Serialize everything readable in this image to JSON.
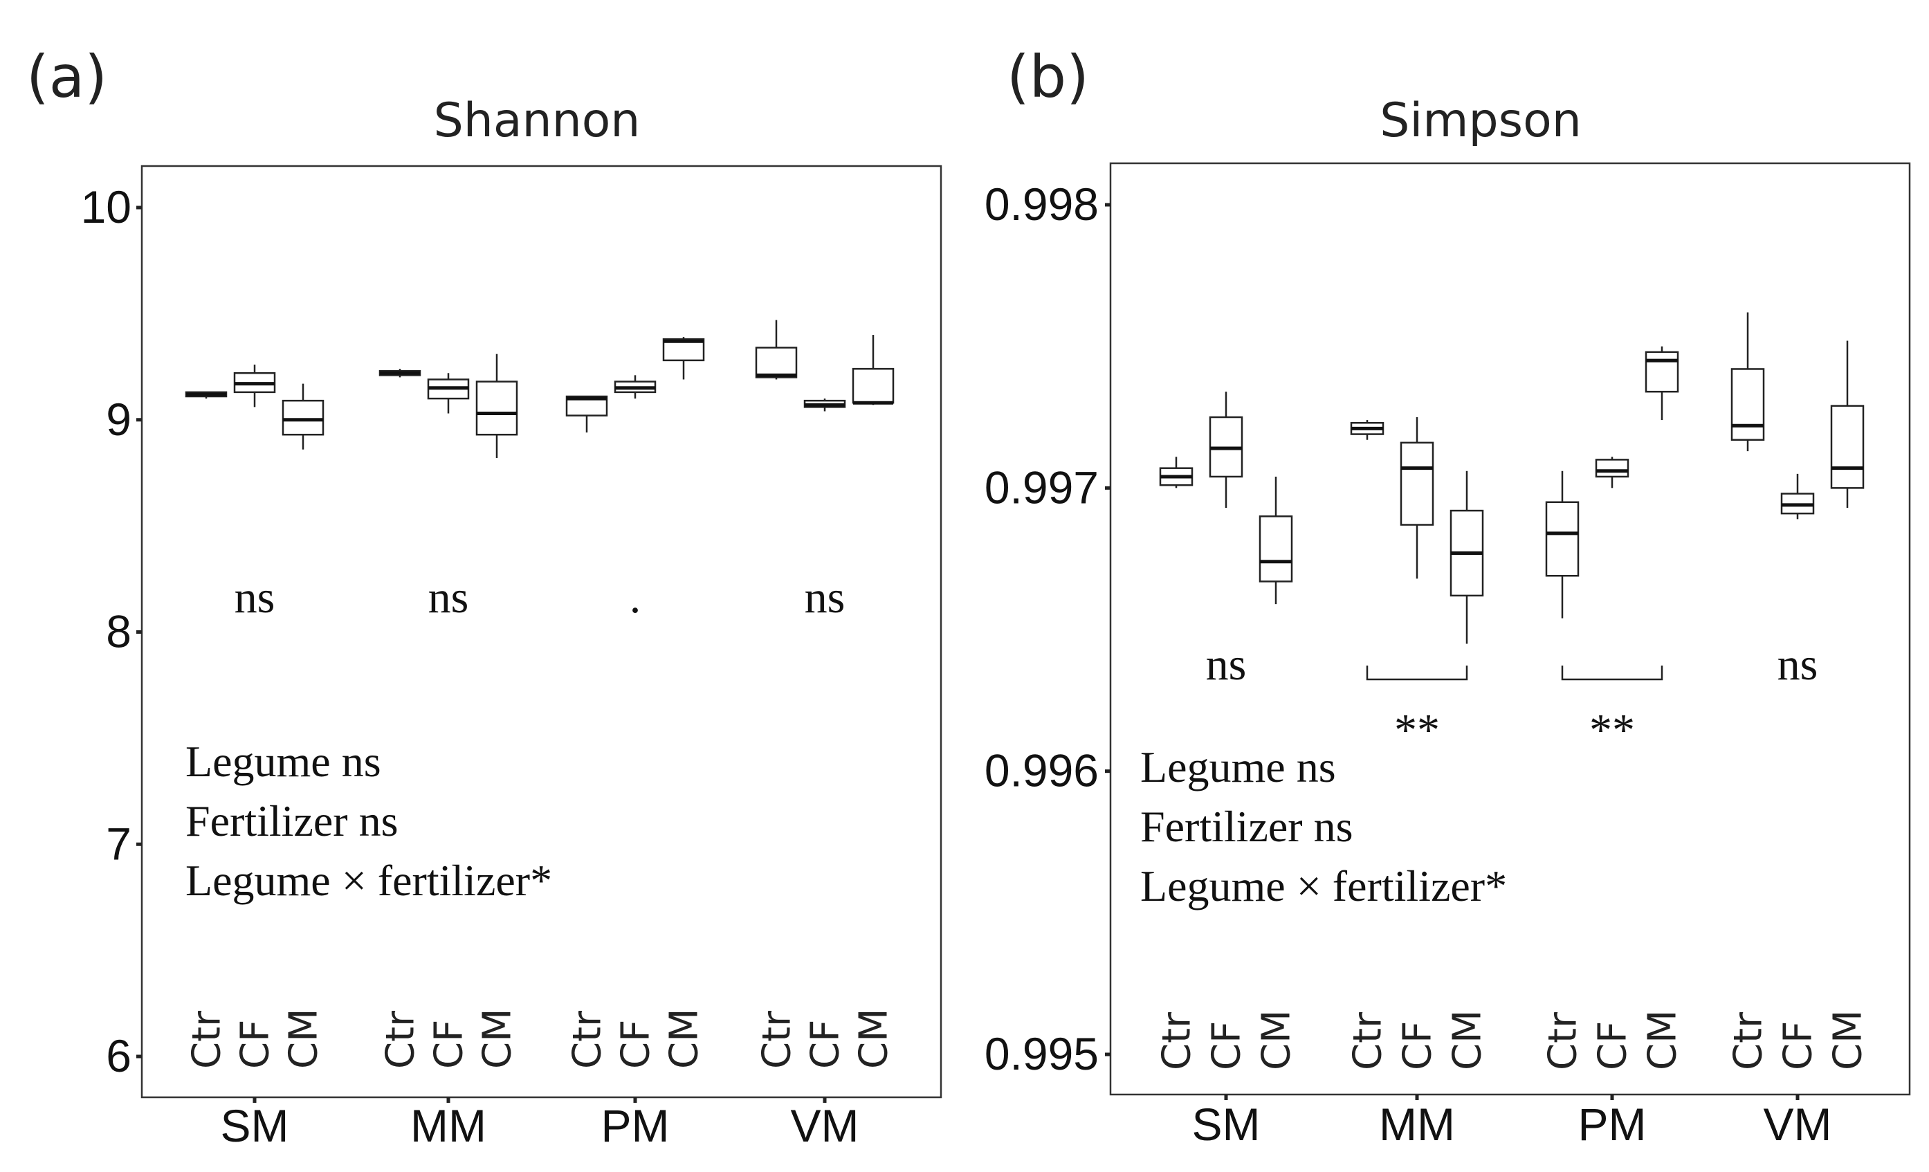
{
  "chart_data": [
    {
      "type": "boxplot",
      "panel_label": "(a)",
      "title": "Shannon",
      "xlabel": "",
      "ylabel": "",
      "ylim": [
        6,
        10
      ],
      "y_ticks": [
        "6",
        "7",
        "8",
        "9",
        "10"
      ],
      "groups": [
        "SM",
        "MM",
        "PM",
        "VM"
      ],
      "treatments": [
        "Ctr",
        "CF",
        "CM"
      ],
      "boxes": [
        {
          "group": "SM",
          "treatment": "Ctr",
          "min": 9.1,
          "q1": 9.11,
          "median": 9.12,
          "q3": 9.13,
          "max": 9.13
        },
        {
          "group": "SM",
          "treatment": "CF",
          "min": 9.06,
          "q1": 9.13,
          "median": 9.17,
          "q3": 9.22,
          "max": 9.26
        },
        {
          "group": "SM",
          "treatment": "CM",
          "min": 8.86,
          "q1": 8.93,
          "median": 9.0,
          "q3": 9.09,
          "max": 9.17
        },
        {
          "group": "MM",
          "treatment": "Ctr",
          "min": 9.2,
          "q1": 9.21,
          "median": 9.22,
          "q3": 9.23,
          "max": 9.24
        },
        {
          "group": "MM",
          "treatment": "CF",
          "min": 9.03,
          "q1": 9.1,
          "median": 9.15,
          "q3": 9.19,
          "max": 9.22
        },
        {
          "group": "MM",
          "treatment": "CM",
          "min": 8.82,
          "q1": 8.93,
          "median": 9.03,
          "q3": 9.18,
          "max": 9.31
        },
        {
          "group": "PM",
          "treatment": "Ctr",
          "min": 8.94,
          "q1": 9.02,
          "median": 9.1,
          "q3": 9.11,
          "max": 9.11
        },
        {
          "group": "PM",
          "treatment": "CF",
          "min": 9.1,
          "q1": 9.13,
          "median": 9.15,
          "q3": 9.18,
          "max": 9.21
        },
        {
          "group": "PM",
          "treatment": "CM",
          "min": 9.19,
          "q1": 9.28,
          "median": 9.37,
          "q3": 9.38,
          "max": 9.39
        },
        {
          "group": "VM",
          "treatment": "Ctr",
          "min": 9.19,
          "q1": 9.2,
          "median": 9.21,
          "q3": 9.34,
          "max": 9.47
        },
        {
          "group": "VM",
          "treatment": "CF",
          "min": 9.04,
          "q1": 9.06,
          "median": 9.07,
          "q3": 9.09,
          "max": 9.1
        },
        {
          "group": "VM",
          "treatment": "CM",
          "min": 9.07,
          "q1": 9.08,
          "median": 9.08,
          "q3": 9.24,
          "max": 9.4
        }
      ],
      "group_annotations": [
        {
          "group": "SM",
          "text": "ns",
          "bracket": false
        },
        {
          "group": "MM",
          "text": "ns",
          "bracket": false
        },
        {
          "group": "PM",
          "text": ".",
          "bracket": false
        },
        {
          "group": "VM",
          "text": "ns",
          "bracket": false
        }
      ],
      "stats_lines": [
        "Legume ns",
        "Fertilizer ns",
        "Legume × fertilizer*"
      ]
    },
    {
      "type": "boxplot",
      "panel_label": "(b)",
      "title": "Simpson",
      "xlabel": "",
      "ylabel": "",
      "ylim": [
        0.995,
        0.998
      ],
      "y_ticks": [
        "0.995",
        "0.996",
        "0.997",
        "0.998"
      ],
      "groups": [
        "SM",
        "MM",
        "PM",
        "VM"
      ],
      "treatments": [
        "Ctr",
        "CF",
        "CM"
      ],
      "boxes": [
        {
          "group": "SM",
          "treatment": "Ctr",
          "min": 0.997,
          "q1": 0.99701,
          "median": 0.99704,
          "q3": 0.99707,
          "max": 0.99711
        },
        {
          "group": "SM",
          "treatment": "CF",
          "min": 0.99693,
          "q1": 0.99704,
          "median": 0.99714,
          "q3": 0.99725,
          "max": 0.99734
        },
        {
          "group": "SM",
          "treatment": "CM",
          "min": 0.99659,
          "q1": 0.99667,
          "median": 0.99674,
          "q3": 0.9969,
          "max": 0.99704
        },
        {
          "group": "MM",
          "treatment": "Ctr",
          "min": 0.99717,
          "q1": 0.99719,
          "median": 0.99721,
          "q3": 0.99723,
          "max": 0.99724
        },
        {
          "group": "MM",
          "treatment": "CF",
          "min": 0.99668,
          "q1": 0.99687,
          "median": 0.99707,
          "q3": 0.99716,
          "max": 0.99725
        },
        {
          "group": "MM",
          "treatment": "CM",
          "min": 0.99645,
          "q1": 0.99662,
          "median": 0.99677,
          "q3": 0.99692,
          "max": 0.99706
        },
        {
          "group": "PM",
          "treatment": "Ctr",
          "min": 0.99654,
          "q1": 0.99669,
          "median": 0.99684,
          "q3": 0.99695,
          "max": 0.99706
        },
        {
          "group": "PM",
          "treatment": "CF",
          "min": 0.997,
          "q1": 0.99704,
          "median": 0.99706,
          "q3": 0.9971,
          "max": 0.99711
        },
        {
          "group": "PM",
          "treatment": "CM",
          "min": 0.99724,
          "q1": 0.99734,
          "median": 0.99745,
          "q3": 0.99748,
          "max": 0.9975
        },
        {
          "group": "VM",
          "treatment": "Ctr",
          "min": 0.99713,
          "q1": 0.99717,
          "median": 0.99722,
          "q3": 0.99742,
          "max": 0.99762
        },
        {
          "group": "VM",
          "treatment": "CF",
          "min": 0.99689,
          "q1": 0.99691,
          "median": 0.99694,
          "q3": 0.99698,
          "max": 0.99705
        },
        {
          "group": "VM",
          "treatment": "CM",
          "min": 0.99693,
          "q1": 0.997,
          "median": 0.99707,
          "q3": 0.99729,
          "max": 0.99752
        }
      ],
      "group_annotations": [
        {
          "group": "SM",
          "text": "ns",
          "bracket": false
        },
        {
          "group": "MM",
          "text": "**",
          "bracket": true
        },
        {
          "group": "PM",
          "text": "**",
          "bracket": true
        },
        {
          "group": "VM",
          "text": "ns",
          "bracket": false
        }
      ],
      "stats_lines": [
        "Legume ns",
        "Fertilizer ns",
        "Legume × fertilizer*"
      ]
    }
  ]
}
